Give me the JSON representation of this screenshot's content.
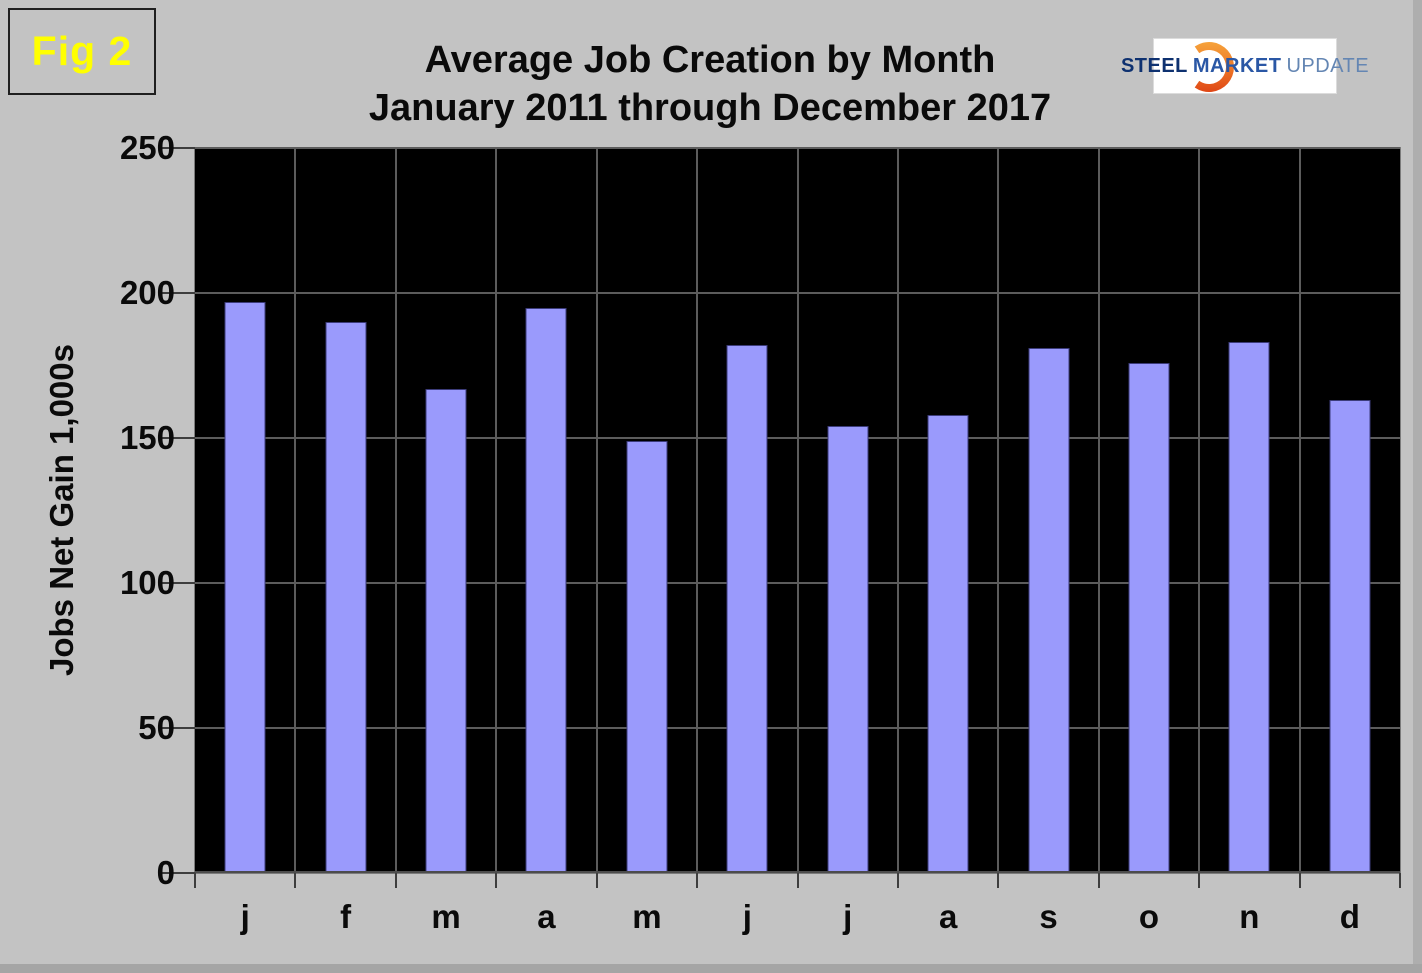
{
  "figure_label": "Fig 2",
  "title": {
    "line1": "Average Job Creation by Month",
    "line2": "January 2011 through December 2017"
  },
  "logo": {
    "part1": "STEEL",
    "part2": "MARKET",
    "part3": "UPDATE",
    "icon": "orange-crescent"
  },
  "chart_data": {
    "type": "bar",
    "title": "Average Job Creation by Month",
    "subtitle": "January 2011 through December 2017",
    "categories": [
      "j",
      "f",
      "m",
      "a",
      "m",
      "j",
      "j",
      "a",
      "s",
      "o",
      "n",
      "d"
    ],
    "values": [
      197,
      190,
      167,
      195,
      149,
      182,
      154,
      158,
      181,
      176,
      183,
      163
    ],
    "xlabel": "",
    "ylabel": "Jobs Net Gain 1,000s",
    "ylim": [
      0,
      250
    ],
    "yticks": [
      0,
      50,
      100,
      150,
      200,
      250
    ],
    "grid": true,
    "legend": "none",
    "colors": {
      "bar_fill": "#9a9afc",
      "bar_border": "#3c3c7a",
      "plot_background": "#000000",
      "gridline": "#5c5c5c",
      "page_background": "#c3c3c3",
      "figure_label": "#ffff00",
      "text": "#0a0a0a",
      "logo_steel": "#0e3170",
      "logo_market": "#2a57a5",
      "logo_update": "#6486b3",
      "logo_crescent_top": "#f6a33b",
      "logo_crescent_bottom": "#df4716"
    }
  }
}
